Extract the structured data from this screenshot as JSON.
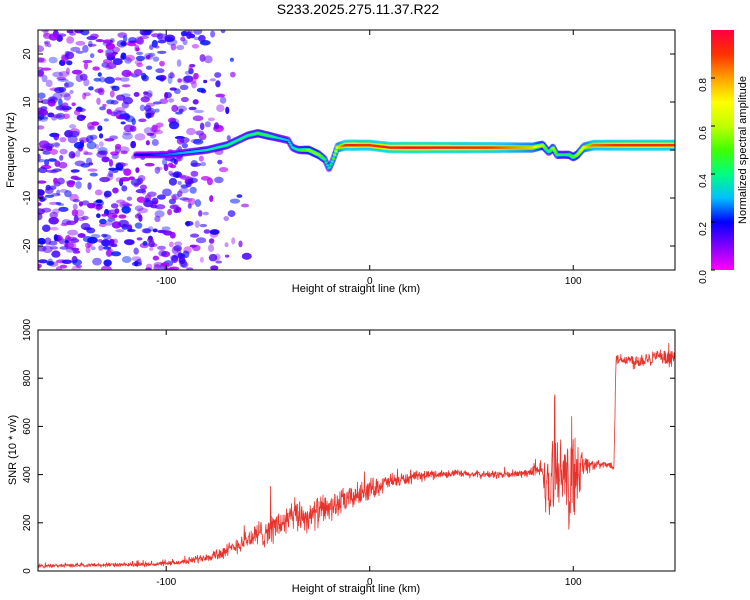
{
  "figure": {
    "title": "S233.2025.275.11.37.R22"
  },
  "chart_data": [
    {
      "type": "heatmap",
      "xlabel": "Height of straight line (km)",
      "ylabel": "Frequency (Hz)",
      "xlim": [
        -163,
        150
      ],
      "ylim": [
        -25,
        25
      ],
      "x_ticks": [
        -100,
        0,
        100
      ],
      "y_ticks": [
        -20,
        -10,
        0,
        10,
        20
      ],
      "grid": false,
      "colorbar": {
        "label": "Normalized spectral amplitude",
        "range": [
          0,
          1
        ],
        "ticks": [
          "0.0",
          "0.2",
          "0.4",
          "0.6",
          "0.8"
        ],
        "colormap": [
          "#ff00ff",
          "#8000ff",
          "#0000ff",
          "#00c0ff",
          "#00ff80",
          "#40ff00",
          "#c0ff00",
          "#ffff00",
          "#ffa000",
          "#ff3000",
          "#ff0040"
        ]
      },
      "ridge": {
        "x": [
          -163,
          -140,
          -120,
          -100,
          -90,
          -80,
          -70,
          -60,
          -55,
          -50,
          -45,
          -40,
          -38,
          -35,
          -30,
          -25,
          -22,
          -20,
          -18,
          -16,
          -12,
          -8,
          -5,
          0,
          10,
          20,
          40,
          60,
          80,
          85,
          88,
          90,
          92,
          95,
          98,
          100,
          102,
          105,
          110,
          120,
          130,
          140,
          150
        ],
        "freq": [
          -2,
          -1,
          -1,
          -1,
          -0.5,
          0,
          1,
          3,
          3.5,
          3,
          2.5,
          2,
          0.5,
          0,
          0,
          -1,
          -2,
          -4,
          -2,
          0.5,
          1,
          1,
          1,
          1,
          0.5,
          0.5,
          0.5,
          0.5,
          0.5,
          1,
          -0.5,
          0.5,
          -1,
          -1,
          -1,
          -1.5,
          -1,
          0.5,
          1,
          1,
          1,
          1,
          1
        ],
        "amp": [
          0,
          0.1,
          0.15,
          0.25,
          0.3,
          0.35,
          0.4,
          0.4,
          0.45,
          0.45,
          0.35,
          0.3,
          0.35,
          0.4,
          0.55,
          0.55,
          0.4,
          0.35,
          0.45,
          0.7,
          0.9,
          0.95,
          0.9,
          0.9,
          0.95,
          1,
          0.95,
          0.9,
          0.75,
          0.6,
          0.35,
          0.6,
          0.45,
          0.4,
          0.45,
          0.5,
          0.55,
          0.7,
          0.85,
          0.9,
          0.92,
          0.92,
          0.9
        ]
      },
      "noise_region_x": [
        -163,
        -60
      ]
    },
    {
      "type": "line",
      "xlabel": "Height of straight line (km)",
      "ylabel": "SNR (10 * v/v)",
      "xlim": [
        -163,
        150
      ],
      "ylim": [
        0,
        1000
      ],
      "x_ticks": [
        -100,
        0,
        100
      ],
      "y_ticks": [
        0,
        200,
        400,
        600,
        800,
        1000
      ],
      "grid": false,
      "series": [
        {
          "color": "#e8322c",
          "x": [
            -163,
            -140,
            -120,
            -100,
            -90,
            -80,
            -70,
            -65,
            -60,
            -55,
            -50,
            -45,
            -40,
            -35,
            -30,
            -25,
            -20,
            -15,
            -10,
            -5,
            0,
            10,
            20,
            30,
            40,
            50,
            60,
            70,
            80,
            85,
            88,
            90,
            95,
            98,
            100,
            105,
            110,
            115,
            120,
            121,
            125,
            130,
            135,
            140,
            145,
            150
          ],
          "y": [
            20,
            25,
            25,
            30,
            40,
            60,
            80,
            110,
            130,
            150,
            170,
            190,
            210,
            235,
            220,
            250,
            260,
            280,
            300,
            320,
            340,
            370,
            385,
            400,
            405,
            400,
            400,
            400,
            410,
            420,
            300,
            410,
            430,
            300,
            430,
            440,
            440,
            440,
            440,
            880,
            880,
            870,
            880,
            890,
            880,
            880
          ],
          "noise": [
            8,
            10,
            10,
            12,
            15,
            25,
            40,
            45,
            55,
            70,
            80,
            75,
            80,
            90,
            70,
            80,
            70,
            70,
            60,
            60,
            55,
            40,
            30,
            25,
            20,
            20,
            20,
            20,
            25,
            60,
            200,
            200,
            120,
            260,
            300,
            60,
            25,
            20,
            20,
            30,
            30,
            40,
            40,
            35,
            40,
            40
          ]
        }
      ]
    }
  ]
}
